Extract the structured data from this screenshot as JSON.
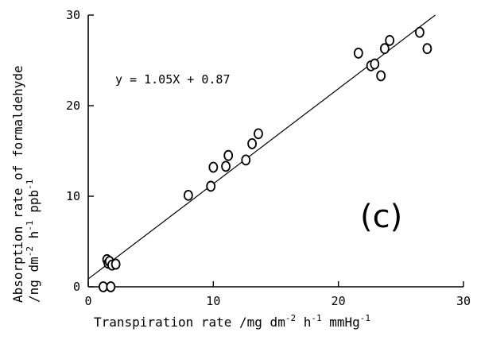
{
  "chart_data": {
    "type": "scatter",
    "x": [
      1.2,
      1.5,
      1.6,
      1.7,
      1.9,
      2.2,
      1.8,
      8.0,
      9.8,
      10.0,
      11.0,
      11.2,
      12.6,
      13.1,
      13.6,
      21.6,
      22.6,
      22.9,
      23.4,
      23.7,
      24.1,
      26.5,
      27.1
    ],
    "y": [
      0.0,
      3.0,
      2.6,
      2.8,
      2.4,
      2.5,
      0.0,
      10.1,
      11.1,
      13.2,
      13.3,
      14.5,
      14.0,
      15.8,
      16.9,
      25.8,
      24.4,
      24.6,
      23.3,
      26.3,
      27.2,
      28.1,
      26.3
    ],
    "xlim": [
      0,
      30
    ],
    "ylim": [
      0,
      30
    ],
    "xticks": [
      "0",
      "10",
      "20",
      "30"
    ],
    "yticks": [
      "0",
      "10",
      "20",
      "30"
    ],
    "fit": {
      "slope": 1.05,
      "intercept": 0.87
    },
    "equation": "y = 1.05X + 0.87",
    "panel_label": "(c)",
    "xlabel": {
      "text": "Transpiration rate /mg dm",
      "sup1": "-2",
      "mid1": " h",
      "sup2": "-1",
      "mid2": " mmHg",
      "sup3": "-1"
    },
    "ylabel_line1": "Absorption rate of formaldehyde",
    "ylabel_line2": {
      "text": "/ng dm",
      "sup1": "-2",
      "mid1": " h",
      "sup2": "-1",
      "mid2": " ppb",
      "sup3": "-1"
    },
    "grid": false
  }
}
